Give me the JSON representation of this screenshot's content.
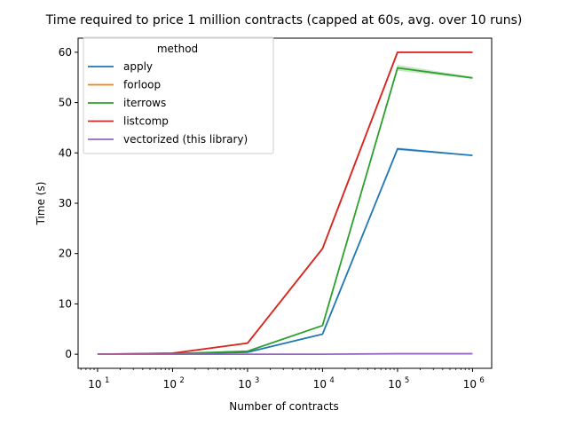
{
  "chart_data": {
    "type": "line",
    "title": "Time required to price 1 million contracts (capped at 60s, avg. over 10 runs)",
    "xlabel": "Number of contracts",
    "ylabel": "Time (s)",
    "xscale": "log",
    "x": [
      10,
      100,
      1000,
      10000,
      100000,
      1000000
    ],
    "xticks": [
      {
        "value": 10,
        "base": "10",
        "exp": "1"
      },
      {
        "value": 100,
        "base": "10",
        "exp": "2"
      },
      {
        "value": 1000,
        "base": "10",
        "exp": "3"
      },
      {
        "value": 10000,
        "base": "10",
        "exp": "4"
      },
      {
        "value": 100000,
        "base": "10",
        "exp": "5"
      },
      {
        "value": 1000000,
        "base": "10",
        "exp": "6"
      }
    ],
    "yticks": [
      0,
      10,
      20,
      30,
      40,
      50,
      60
    ],
    "ylim": [
      -2.8,
      62.8
    ],
    "xlim": [
      5.5,
      1800000
    ],
    "grid": false,
    "legend": {
      "title": "method",
      "placement": "top-left"
    },
    "series": [
      {
        "name": "apply",
        "color": "#1f77b4",
        "values": [
          0.0,
          0.05,
          0.4,
          4.0,
          40.8,
          39.5
        ]
      },
      {
        "name": "forloop",
        "color": "#ff7f0e",
        "values": [
          0.0,
          0.2,
          2.2,
          21.0,
          60.0,
          60.0
        ]
      },
      {
        "name": "iterrows",
        "color": "#2ca02c",
        "values": [
          0.0,
          0.1,
          0.6,
          5.7,
          56.9,
          54.9
        ]
      },
      {
        "name": "listcomp",
        "color": "#d62728",
        "values": [
          0.0,
          0.2,
          2.2,
          21.0,
          60.0,
          60.0
        ]
      },
      {
        "name": "vectorized (this library)",
        "color": "#9467bd",
        "values": [
          0.0,
          0.0,
          0.0,
          0.0,
          0.1,
          0.1
        ]
      }
    ],
    "bands": [
      {
        "series": "iterrows",
        "color": "#2ca02c",
        "lower": [
          0.0,
          0.1,
          0.6,
          5.6,
          56.3,
          54.7
        ],
        "upper": [
          0.0,
          0.1,
          0.6,
          5.8,
          57.5,
          55.1
        ]
      },
      {
        "series": "apply",
        "color": "#1f77b4",
        "lower": [
          0.0,
          0.05,
          0.4,
          3.9,
          40.5,
          39.4
        ],
        "upper": [
          0.0,
          0.05,
          0.4,
          4.1,
          41.1,
          39.6
        ]
      }
    ]
  }
}
